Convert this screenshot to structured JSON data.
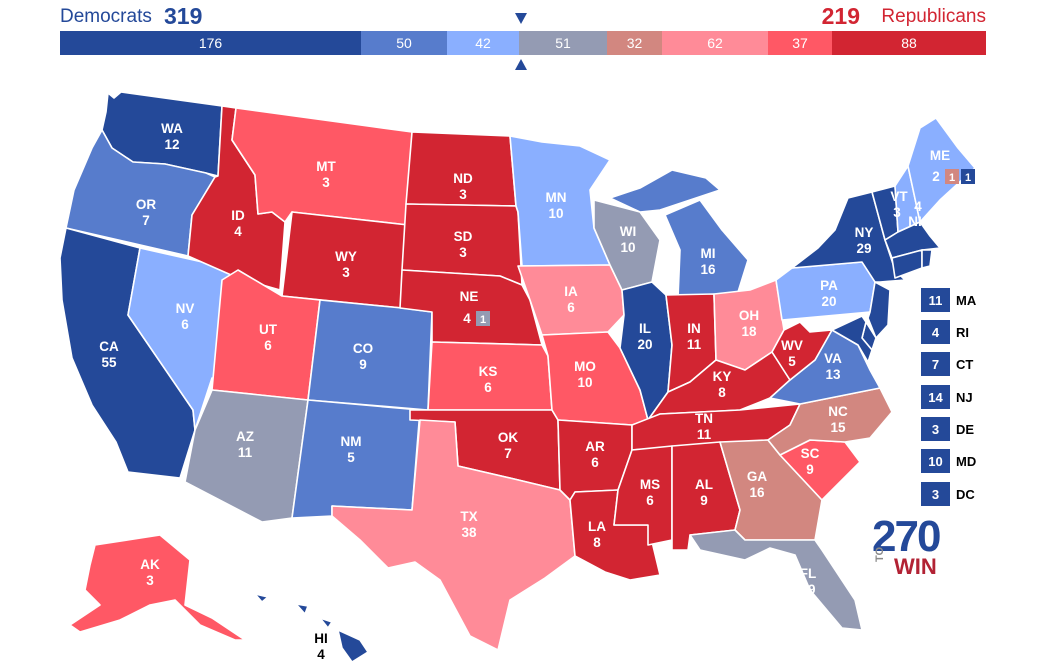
{
  "header": {
    "dem_label": "Democrats",
    "dem_total": "319",
    "rep_total": "219",
    "rep_label": "Republicans"
  },
  "bar": {
    "segments": [
      {
        "value": "176",
        "color": "#244999"
      },
      {
        "value": "50",
        "color": "#577ccc"
      },
      {
        "value": "42",
        "color": "#8aafff"
      },
      {
        "value": "51",
        "color": "#949bb3"
      },
      {
        "value": "32",
        "color": "#d28780"
      },
      {
        "value": "62",
        "color": "#ff8b98"
      },
      {
        "value": "37",
        "color": "#ff5865"
      },
      {
        "value": "88",
        "color": "#d22532"
      }
    ]
  },
  "colors": {
    "safe_dem": "#244999",
    "likely_dem": "#577ccc",
    "lean_dem": "#8aafff",
    "tossup": "#949bb3",
    "tilt_rep": "#d28780",
    "lean_rep": "#ff8b98",
    "likely_rep": "#ff5865",
    "safe_rep": "#d22532"
  },
  "states": {
    "WA": {
      "abbr": "WA",
      "ev": "12"
    },
    "OR": {
      "abbr": "OR",
      "ev": "7"
    },
    "CA": {
      "abbr": "CA",
      "ev": "55"
    },
    "NV": {
      "abbr": "NV",
      "ev": "6"
    },
    "ID": {
      "abbr": "ID",
      "ev": "4"
    },
    "MT": {
      "abbr": "MT",
      "ev": "3"
    },
    "WY": {
      "abbr": "WY",
      "ev": "3"
    },
    "UT": {
      "abbr": "UT",
      "ev": "6"
    },
    "AZ": {
      "abbr": "AZ",
      "ev": "11"
    },
    "CO": {
      "abbr": "CO",
      "ev": "9"
    },
    "NM": {
      "abbr": "NM",
      "ev": "5"
    },
    "ND": {
      "abbr": "ND",
      "ev": "3"
    },
    "SD": {
      "abbr": "SD",
      "ev": "3"
    },
    "NE": {
      "abbr": "NE",
      "ev": "4",
      "district": "1"
    },
    "KS": {
      "abbr": "KS",
      "ev": "6"
    },
    "OK": {
      "abbr": "OK",
      "ev": "7"
    },
    "TX": {
      "abbr": "TX",
      "ev": "38"
    },
    "MN": {
      "abbr": "MN",
      "ev": "10"
    },
    "IA": {
      "abbr": "IA",
      "ev": "6"
    },
    "MO": {
      "abbr": "MO",
      "ev": "10"
    },
    "AR": {
      "abbr": "AR",
      "ev": "6"
    },
    "LA": {
      "abbr": "LA",
      "ev": "8"
    },
    "WI": {
      "abbr": "WI",
      "ev": "10"
    },
    "IL": {
      "abbr": "IL",
      "ev": "20"
    },
    "MI": {
      "abbr": "MI",
      "ev": "16"
    },
    "IN": {
      "abbr": "IN",
      "ev": "11"
    },
    "OH": {
      "abbr": "OH",
      "ev": "18"
    },
    "KY": {
      "abbr": "KY",
      "ev": "8"
    },
    "TN": {
      "abbr": "TN",
      "ev": "11"
    },
    "MS": {
      "abbr": "MS",
      "ev": "6"
    },
    "AL": {
      "abbr": "AL",
      "ev": "9"
    },
    "GA": {
      "abbr": "GA",
      "ev": "16"
    },
    "FL": {
      "abbr": "FL",
      "ev": "29"
    },
    "SC": {
      "abbr": "SC",
      "ev": "9"
    },
    "NC": {
      "abbr": "NC",
      "ev": "15"
    },
    "VA": {
      "abbr": "VA",
      "ev": "13"
    },
    "WV": {
      "abbr": "WV",
      "ev": "5"
    },
    "PA": {
      "abbr": "PA",
      "ev": "20"
    },
    "NY": {
      "abbr": "NY",
      "ev": "29"
    },
    "VT": {
      "abbr": "VT",
      "ev": "3"
    },
    "NH": {
      "abbr": "NH",
      "ev": "4"
    },
    "ME": {
      "abbr": "ME",
      "ev": "2",
      "district1": "1",
      "district2": "1"
    },
    "AK": {
      "abbr": "AK",
      "ev": "3"
    },
    "HI": {
      "abbr": "HI",
      "ev": "4"
    }
  },
  "small_states": [
    {
      "ev": "11",
      "abbr": "MA"
    },
    {
      "ev": "4",
      "abbr": "RI"
    },
    {
      "ev": "7",
      "abbr": "CT"
    },
    {
      "ev": "14",
      "abbr": "NJ"
    },
    {
      "ev": "3",
      "abbr": "DE"
    },
    {
      "ev": "10",
      "abbr": "MD"
    },
    {
      "ev": "3",
      "abbr": "DC"
    }
  ],
  "logo": {
    "number": "270",
    "to": "TO",
    "win": "WIN"
  }
}
